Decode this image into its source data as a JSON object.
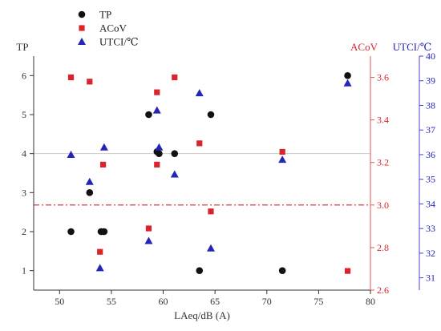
{
  "colors": {
    "tp": "#111111",
    "acov": "#d8242a",
    "utci": "#2424b8",
    "axis": "#333333",
    "acov_axis": "#e05555",
    "utci_axis": "#4444c8",
    "grid_line": "#cccccc"
  },
  "chart_data": {
    "type": "scatter",
    "xlabel": "LAeq/dB (A)",
    "xlim": [
      47.5,
      80
    ],
    "xticks": [
      "50",
      "55",
      "60",
      "65",
      "70",
      "75",
      "80"
    ],
    "x_tick_values": [
      50,
      55,
      60,
      65,
      70,
      75,
      80
    ],
    "legend_position": "top-left",
    "axes": {
      "left": {
        "label": "TP",
        "lim": [
          0.5,
          6.5
        ],
        "ticks": [
          "1",
          "2",
          "3",
          "4",
          "5",
          "6"
        ],
        "tick_values": [
          1,
          2,
          3,
          4,
          5,
          6
        ]
      },
      "right1": {
        "label": "ACoV",
        "lim": [
          2.6,
          3.7
        ],
        "ticks": [
          "2.6",
          "2.8",
          "3.0",
          "3.2",
          "3.4",
          "3.6"
        ],
        "tick_values": [
          2.6,
          2.8,
          3.0,
          3.2,
          3.4,
          3.6
        ]
      },
      "right2": {
        "label": "UTCI/℃",
        "lim": [
          30.5,
          40
        ],
        "ticks": [
          "31",
          "32",
          "33",
          "34",
          "35",
          "36",
          "37",
          "38",
          "39",
          "40"
        ],
        "tick_values": [
          31,
          32,
          33,
          34,
          35,
          36,
          37,
          38,
          39,
          40
        ]
      }
    },
    "reference_lines": {
      "tp_at_4": 4,
      "acov_at_3": 3.0
    },
    "series": [
      {
        "name": "TP",
        "marker": "circle",
        "axis": "left",
        "x": [
          51.1,
          52.9,
          54.0,
          54.3,
          58.6,
          59.4,
          59.6,
          61.1,
          63.5,
          64.6,
          71.5,
          77.8
        ],
        "y": [
          2,
          3,
          2,
          2,
          5,
          4.05,
          4.0,
          4,
          1,
          5,
          1,
          6
        ]
      },
      {
        "name": "ACoV",
        "marker": "square",
        "axis": "right1",
        "x": [
          51.1,
          52.9,
          53.9,
          54.2,
          58.6,
          59.4,
          59.4,
          61.1,
          63.5,
          64.6,
          71.5,
          77.8
        ],
        "y": [
          3.6,
          3.58,
          2.78,
          3.19,
          2.89,
          3.53,
          3.19,
          3.6,
          3.29,
          2.97,
          3.25,
          2.69
        ]
      },
      {
        "name": "UTCI/℃",
        "marker": "triangle",
        "axis": "right2",
        "x": [
          51.1,
          52.9,
          53.9,
          54.3,
          58.6,
          59.4,
          59.6,
          61.1,
          63.5,
          64.6,
          71.5,
          77.8
        ],
        "y": [
          36.0,
          34.9,
          31.4,
          36.3,
          32.5,
          37.8,
          36.3,
          35.2,
          38.5,
          32.2,
          35.8,
          38.9
        ]
      }
    ]
  }
}
